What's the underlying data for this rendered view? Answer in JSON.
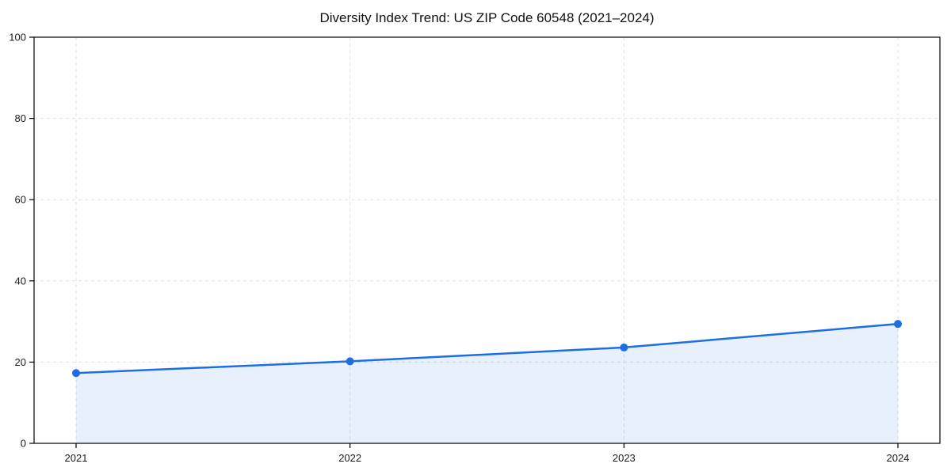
{
  "chart_data": {
    "type": "area",
    "title": "Diversity Index Trend: US ZIP Code 60548 (2021–2024)",
    "categories": [
      "2021",
      "2022",
      "2023",
      "2024"
    ],
    "values": [
      17.3,
      20.2,
      23.6,
      29.4
    ],
    "xlabel": "",
    "ylabel": "",
    "ylim": [
      0,
      100
    ],
    "yticks": [
      0,
      20,
      40,
      60,
      80,
      100
    ],
    "grid": "dashed",
    "legend": "none",
    "marker": "circle",
    "line_color": "#1b6ee3",
    "fill_color": "#1b6ee3",
    "fill_opacity": 0.1,
    "grid_color": "#e0e0e0",
    "axis_color": "#000000",
    "text_color": "#1a1a1a"
  }
}
